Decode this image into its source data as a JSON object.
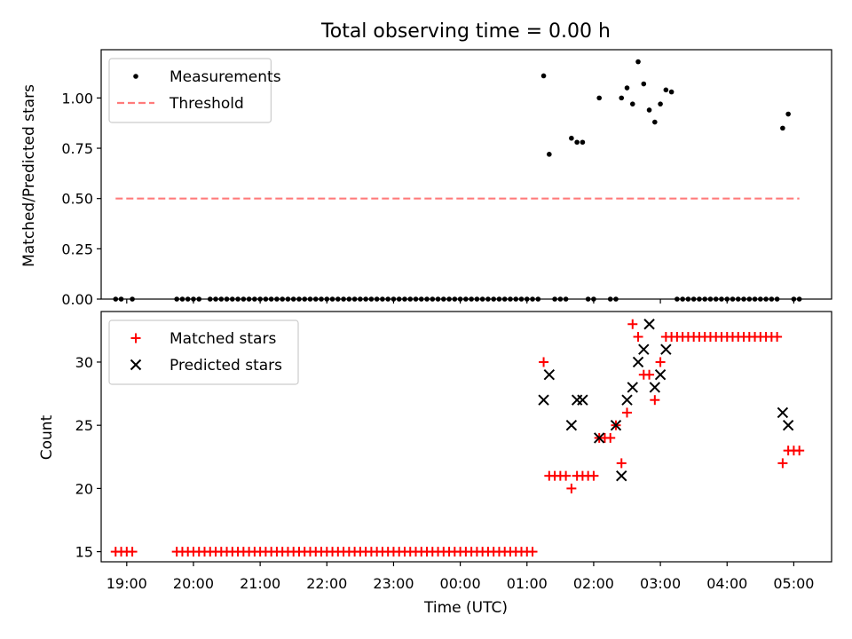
{
  "chart_data": [
    {
      "type": "scatter",
      "title": "Total observing time = 0.00 h",
      "xlabel": "",
      "ylabel": "Matched/Predicted stars",
      "xlim": [
        "18:37",
        "05:34"
      ],
      "ylim": [
        0,
        1.24
      ],
      "yticks": [
        "0.00",
        "0.25",
        "0.50",
        "0.75",
        "1.00"
      ],
      "legend_position": "upper-left",
      "series": [
        {
          "name": "Measurements",
          "style": "dot",
          "color": "#000000",
          "points": [
            [
              "18:50",
              0
            ],
            [
              "18:55",
              0
            ],
            [
              "19:05",
              0
            ],
            [
              "19:45",
              0
            ],
            [
              "19:50",
              0
            ],
            [
              "19:55",
              0
            ],
            [
              "20:00",
              0
            ],
            [
              "20:05",
              0
            ],
            [
              "20:15",
              0
            ],
            [
              "20:20",
              0
            ],
            [
              "20:25",
              0
            ],
            [
              "20:30",
              0
            ],
            [
              "20:35",
              0
            ],
            [
              "20:40",
              0
            ],
            [
              "20:45",
              0
            ],
            [
              "20:50",
              0
            ],
            [
              "20:55",
              0
            ],
            [
              "21:00",
              0
            ],
            [
              "21:05",
              0
            ],
            [
              "21:10",
              0
            ],
            [
              "21:15",
              0
            ],
            [
              "21:20",
              0
            ],
            [
              "21:25",
              0
            ],
            [
              "21:30",
              0
            ],
            [
              "21:35",
              0
            ],
            [
              "21:40",
              0
            ],
            [
              "21:45",
              0
            ],
            [
              "21:50",
              0
            ],
            [
              "21:55",
              0
            ],
            [
              "22:00",
              0
            ],
            [
              "22:05",
              0
            ],
            [
              "22:10",
              0
            ],
            [
              "22:15",
              0
            ],
            [
              "22:20",
              0
            ],
            [
              "22:25",
              0
            ],
            [
              "22:30",
              0
            ],
            [
              "22:35",
              0
            ],
            [
              "22:40",
              0
            ],
            [
              "22:45",
              0
            ],
            [
              "22:50",
              0
            ],
            [
              "22:55",
              0
            ],
            [
              "23:00",
              0
            ],
            [
              "23:05",
              0
            ],
            [
              "23:10",
              0
            ],
            [
              "23:15",
              0
            ],
            [
              "23:20",
              0
            ],
            [
              "23:25",
              0
            ],
            [
              "23:30",
              0
            ],
            [
              "23:35",
              0
            ],
            [
              "23:40",
              0
            ],
            [
              "23:45",
              0
            ],
            [
              "23:50",
              0
            ],
            [
              "23:55",
              0
            ],
            [
              "00:00",
              0
            ],
            [
              "00:05",
              0
            ],
            [
              "00:10",
              0
            ],
            [
              "00:15",
              0
            ],
            [
              "00:20",
              0
            ],
            [
              "00:25",
              0
            ],
            [
              "00:30",
              0
            ],
            [
              "00:35",
              0
            ],
            [
              "00:40",
              0
            ],
            [
              "00:45",
              0
            ],
            [
              "00:50",
              0
            ],
            [
              "00:55",
              0
            ],
            [
              "01:00",
              0
            ],
            [
              "01:05",
              0
            ],
            [
              "01:10",
              0
            ],
            [
              "01:15",
              1.11
            ],
            [
              "01:20",
              0.72
            ],
            [
              "01:25",
              0
            ],
            [
              "01:30",
              0
            ],
            [
              "01:35",
              0
            ],
            [
              "01:40",
              0.8
            ],
            [
              "01:45",
              0.78
            ],
            [
              "01:50",
              0.78
            ],
            [
              "01:55",
              0
            ],
            [
              "02:00",
              0
            ],
            [
              "02:05",
              1.0
            ],
            [
              "02:15",
              0
            ],
            [
              "02:20",
              0
            ],
            [
              "02:25",
              1.0
            ],
            [
              "02:30",
              1.05
            ],
            [
              "02:35",
              0.97
            ],
            [
              "02:40",
              1.18
            ],
            [
              "02:45",
              1.07
            ],
            [
              "02:50",
              0.94
            ],
            [
              "02:55",
              0.88
            ],
            [
              "03:00",
              0.97
            ],
            [
              "03:05",
              1.04
            ],
            [
              "03:10",
              1.03
            ],
            [
              "03:15",
              0
            ],
            [
              "03:20",
              0
            ],
            [
              "03:25",
              0
            ],
            [
              "03:30",
              0
            ],
            [
              "03:35",
              0
            ],
            [
              "03:40",
              0
            ],
            [
              "03:45",
              0
            ],
            [
              "03:50",
              0
            ],
            [
              "03:55",
              0
            ],
            [
              "04:00",
              0
            ],
            [
              "04:05",
              0
            ],
            [
              "04:10",
              0
            ],
            [
              "04:15",
              0
            ],
            [
              "04:20",
              0
            ],
            [
              "04:25",
              0
            ],
            [
              "04:30",
              0
            ],
            [
              "04:35",
              0
            ],
            [
              "04:40",
              0
            ],
            [
              "04:45",
              0
            ],
            [
              "04:50",
              0.85
            ],
            [
              "04:55",
              0.92
            ],
            [
              "05:00",
              0
            ],
            [
              "05:05",
              0
            ]
          ]
        },
        {
          "name": "Threshold",
          "style": "dashed-line",
          "color": "#ff7b7b",
          "points": [
            [
              "18:50",
              0.5
            ],
            [
              "05:05",
              0.5
            ]
          ]
        }
      ]
    },
    {
      "type": "scatter",
      "title": "",
      "xlabel": "Time (UTC)",
      "ylabel": "Count",
      "xlim": [
        "18:37",
        "05:34"
      ],
      "ylim": [
        14.2,
        34.0
      ],
      "yticks": [
        "15",
        "20",
        "25",
        "30"
      ],
      "xticks": [
        "19:00",
        "20:00",
        "21:00",
        "22:00",
        "23:00",
        "00:00",
        "01:00",
        "02:00",
        "03:00",
        "04:00",
        "05:00"
      ],
      "legend_position": "upper-left",
      "series": [
        {
          "name": "Matched stars",
          "style": "plus",
          "color": "#ff0000",
          "points": [
            [
              "18:50",
              15
            ],
            [
              "18:55",
              15
            ],
            [
              "19:00",
              15
            ],
            [
              "19:05",
              15
            ],
            [
              "19:45",
              15
            ],
            [
              "19:50",
              15
            ],
            [
              "19:55",
              15
            ],
            [
              "20:00",
              15
            ],
            [
              "20:05",
              15
            ],
            [
              "20:10",
              15
            ],
            [
              "20:15",
              15
            ],
            [
              "20:20",
              15
            ],
            [
              "20:25",
              15
            ],
            [
              "20:30",
              15
            ],
            [
              "20:35",
              15
            ],
            [
              "20:40",
              15
            ],
            [
              "20:45",
              15
            ],
            [
              "20:50",
              15
            ],
            [
              "20:55",
              15
            ],
            [
              "21:00",
              15
            ],
            [
              "21:05",
              15
            ],
            [
              "21:10",
              15
            ],
            [
              "21:15",
              15
            ],
            [
              "21:20",
              15
            ],
            [
              "21:25",
              15
            ],
            [
              "21:30",
              15
            ],
            [
              "21:35",
              15
            ],
            [
              "21:40",
              15
            ],
            [
              "21:45",
              15
            ],
            [
              "21:50",
              15
            ],
            [
              "21:55",
              15
            ],
            [
              "22:00",
              15
            ],
            [
              "22:05",
              15
            ],
            [
              "22:10",
              15
            ],
            [
              "22:15",
              15
            ],
            [
              "22:20",
              15
            ],
            [
              "22:25",
              15
            ],
            [
              "22:30",
              15
            ],
            [
              "22:35",
              15
            ],
            [
              "22:40",
              15
            ],
            [
              "22:45",
              15
            ],
            [
              "22:50",
              15
            ],
            [
              "22:55",
              15
            ],
            [
              "23:00",
              15
            ],
            [
              "23:05",
              15
            ],
            [
              "23:10",
              15
            ],
            [
              "23:15",
              15
            ],
            [
              "23:20",
              15
            ],
            [
              "23:25",
              15
            ],
            [
              "23:30",
              15
            ],
            [
              "23:35",
              15
            ],
            [
              "23:40",
              15
            ],
            [
              "23:45",
              15
            ],
            [
              "23:50",
              15
            ],
            [
              "23:55",
              15
            ],
            [
              "00:00",
              15
            ],
            [
              "00:05",
              15
            ],
            [
              "00:10",
              15
            ],
            [
              "00:15",
              15
            ],
            [
              "00:20",
              15
            ],
            [
              "00:25",
              15
            ],
            [
              "00:30",
              15
            ],
            [
              "00:35",
              15
            ],
            [
              "00:40",
              15
            ],
            [
              "00:45",
              15
            ],
            [
              "00:50",
              15
            ],
            [
              "00:55",
              15
            ],
            [
              "01:00",
              15
            ],
            [
              "01:05",
              15
            ],
            [
              "01:15",
              30
            ],
            [
              "01:20",
              21
            ],
            [
              "01:25",
              21
            ],
            [
              "01:30",
              21
            ],
            [
              "01:35",
              21
            ],
            [
              "01:40",
              20
            ],
            [
              "01:45",
              21
            ],
            [
              "01:50",
              21
            ],
            [
              "01:55",
              21
            ],
            [
              "02:00",
              21
            ],
            [
              "02:05",
              24
            ],
            [
              "02:10",
              24
            ],
            [
              "02:15",
              24
            ],
            [
              "02:20",
              25
            ],
            [
              "02:25",
              22
            ],
            [
              "02:30",
              26
            ],
            [
              "02:35",
              33
            ],
            [
              "02:40",
              32
            ],
            [
              "02:45",
              29
            ],
            [
              "02:50",
              29
            ],
            [
              "02:55",
              27
            ],
            [
              "03:00",
              30
            ],
            [
              "03:05",
              32
            ],
            [
              "03:10",
              32
            ],
            [
              "03:15",
              32
            ],
            [
              "03:20",
              32
            ],
            [
              "03:25",
              32
            ],
            [
              "03:30",
              32
            ],
            [
              "03:35",
              32
            ],
            [
              "03:40",
              32
            ],
            [
              "03:45",
              32
            ],
            [
              "03:50",
              32
            ],
            [
              "03:55",
              32
            ],
            [
              "04:00",
              32
            ],
            [
              "04:05",
              32
            ],
            [
              "04:10",
              32
            ],
            [
              "04:15",
              32
            ],
            [
              "04:20",
              32
            ],
            [
              "04:25",
              32
            ],
            [
              "04:30",
              32
            ],
            [
              "04:35",
              32
            ],
            [
              "04:40",
              32
            ],
            [
              "04:45",
              32
            ],
            [
              "04:50",
              22
            ],
            [
              "04:55",
              23
            ],
            [
              "05:00",
              23
            ],
            [
              "05:05",
              23
            ]
          ]
        },
        {
          "name": "Predicted stars",
          "style": "cross",
          "color": "#000000",
          "points": [
            [
              "01:15",
              27
            ],
            [
              "01:20",
              29
            ],
            [
              "01:40",
              25
            ],
            [
              "01:45",
              27
            ],
            [
              "01:50",
              27
            ],
            [
              "02:05",
              24
            ],
            [
              "02:20",
              25
            ],
            [
              "02:25",
              21
            ],
            [
              "02:30",
              27
            ],
            [
              "02:35",
              28
            ],
            [
              "02:40",
              30
            ],
            [
              "02:45",
              31
            ],
            [
              "02:50",
              33
            ],
            [
              "02:55",
              28
            ],
            [
              "03:00",
              29
            ],
            [
              "03:05",
              31
            ],
            [
              "04:50",
              26
            ],
            [
              "04:55",
              25
            ]
          ]
        }
      ]
    }
  ]
}
